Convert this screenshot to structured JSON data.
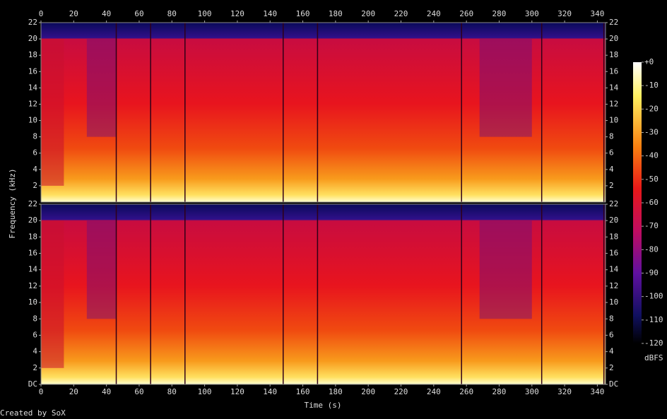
{
  "chart_data": {
    "type": "spectrogram",
    "xlabel": "Time (s)",
    "ylabel": "Frequency (kHz)",
    "xlim": [
      0,
      345
    ],
    "xticks": [
      0,
      20,
      40,
      60,
      80,
      100,
      120,
      140,
      160,
      180,
      200,
      220,
      240,
      260,
      280,
      300,
      320,
      340
    ],
    "ylim": [
      0,
      22
    ],
    "panels": [
      {
        "yticks": [
          2,
          4,
          6,
          8,
          10,
          12,
          14,
          16,
          18,
          20,
          22
        ]
      },
      {
        "yticks": [
          {
            "value": 0,
            "label": "DC"
          },
          2,
          4,
          6,
          8,
          10,
          12,
          14,
          16,
          18,
          20,
          22
        ]
      }
    ],
    "colorbar": {
      "label": "dBFS",
      "lim": [
        -120,
        0
      ],
      "ticks": [
        {
          "value": 0,
          "label": "+0"
        },
        -10,
        -20,
        -30,
        -40,
        -50,
        -60,
        -70,
        -80,
        -90,
        -100,
        -110,
        -120
      ]
    }
  },
  "footer": "Created by SoX"
}
